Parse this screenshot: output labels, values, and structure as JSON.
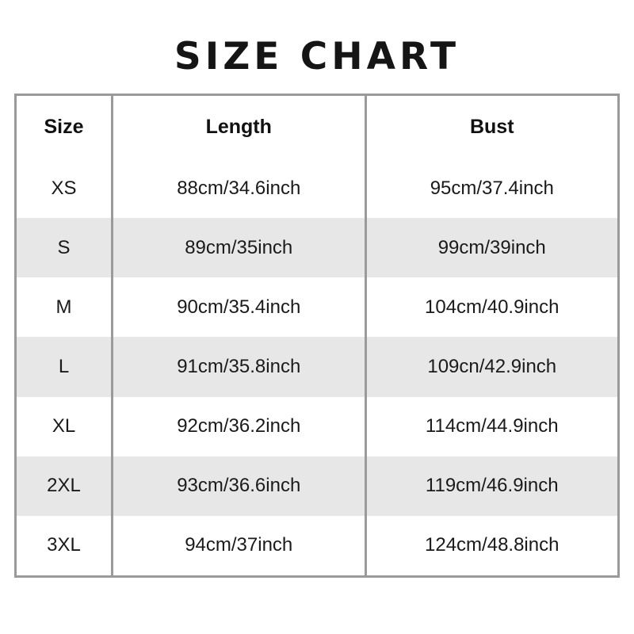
{
  "title": "SIZE CHART",
  "table": {
    "headers": [
      "Size",
      "Length",
      "Bust"
    ],
    "rows": [
      [
        "XS",
        "88cm/34.6inch",
        "95cm/37.4inch"
      ],
      [
        "S",
        "89cm/35inch",
        "99cm/39inch"
      ],
      [
        "M",
        "90cm/35.4inch",
        "104cm/40.9inch"
      ],
      [
        "L",
        "91cm/35.8inch",
        "109cn/42.9inch"
      ],
      [
        "XL",
        "92cm/36.2inch",
        "114cm/44.9inch"
      ],
      [
        "2XL",
        "93cm/36.6inch",
        "119cm/46.9inch"
      ],
      [
        "3XL",
        "94cm/37inch",
        "124cm/48.8inch"
      ]
    ]
  },
  "colors": {
    "row_shade": "#e7e7e7",
    "border": "#9a9a9a",
    "text": "#1a1a1a",
    "title_text": "#151515"
  },
  "chart_data": {
    "type": "table",
    "title": "SIZE CHART",
    "columns": [
      "Size",
      "Length",
      "Bust"
    ],
    "rows": [
      {
        "size": "XS",
        "length": "88cm/34.6inch",
        "bust": "95cm/37.4inch"
      },
      {
        "size": "S",
        "length": "89cm/35inch",
        "bust": "99cm/39inch"
      },
      {
        "size": "M",
        "length": "90cm/35.4inch",
        "bust": "104cm/40.9inch"
      },
      {
        "size": "L",
        "length": "91cm/35.8inch",
        "bust": "109cn/42.9inch"
      },
      {
        "size": "XL",
        "length": "92cm/36.2inch",
        "bust": "114cm/44.9inch"
      },
      {
        "size": "2XL",
        "length": "93cm/36.6inch",
        "bust": "119cm/46.9inch"
      },
      {
        "size": "3XL",
        "length": "94cm/37inch",
        "bust": "124cm/48.8inch"
      }
    ],
    "layout": {
      "header_background": "#e7e7e7",
      "alternating_row_background": [
        "#ffffff",
        "#e7e7e7"
      ],
      "inner_borders": "vertical-only",
      "outer_border": "#9a9a9a"
    }
  }
}
